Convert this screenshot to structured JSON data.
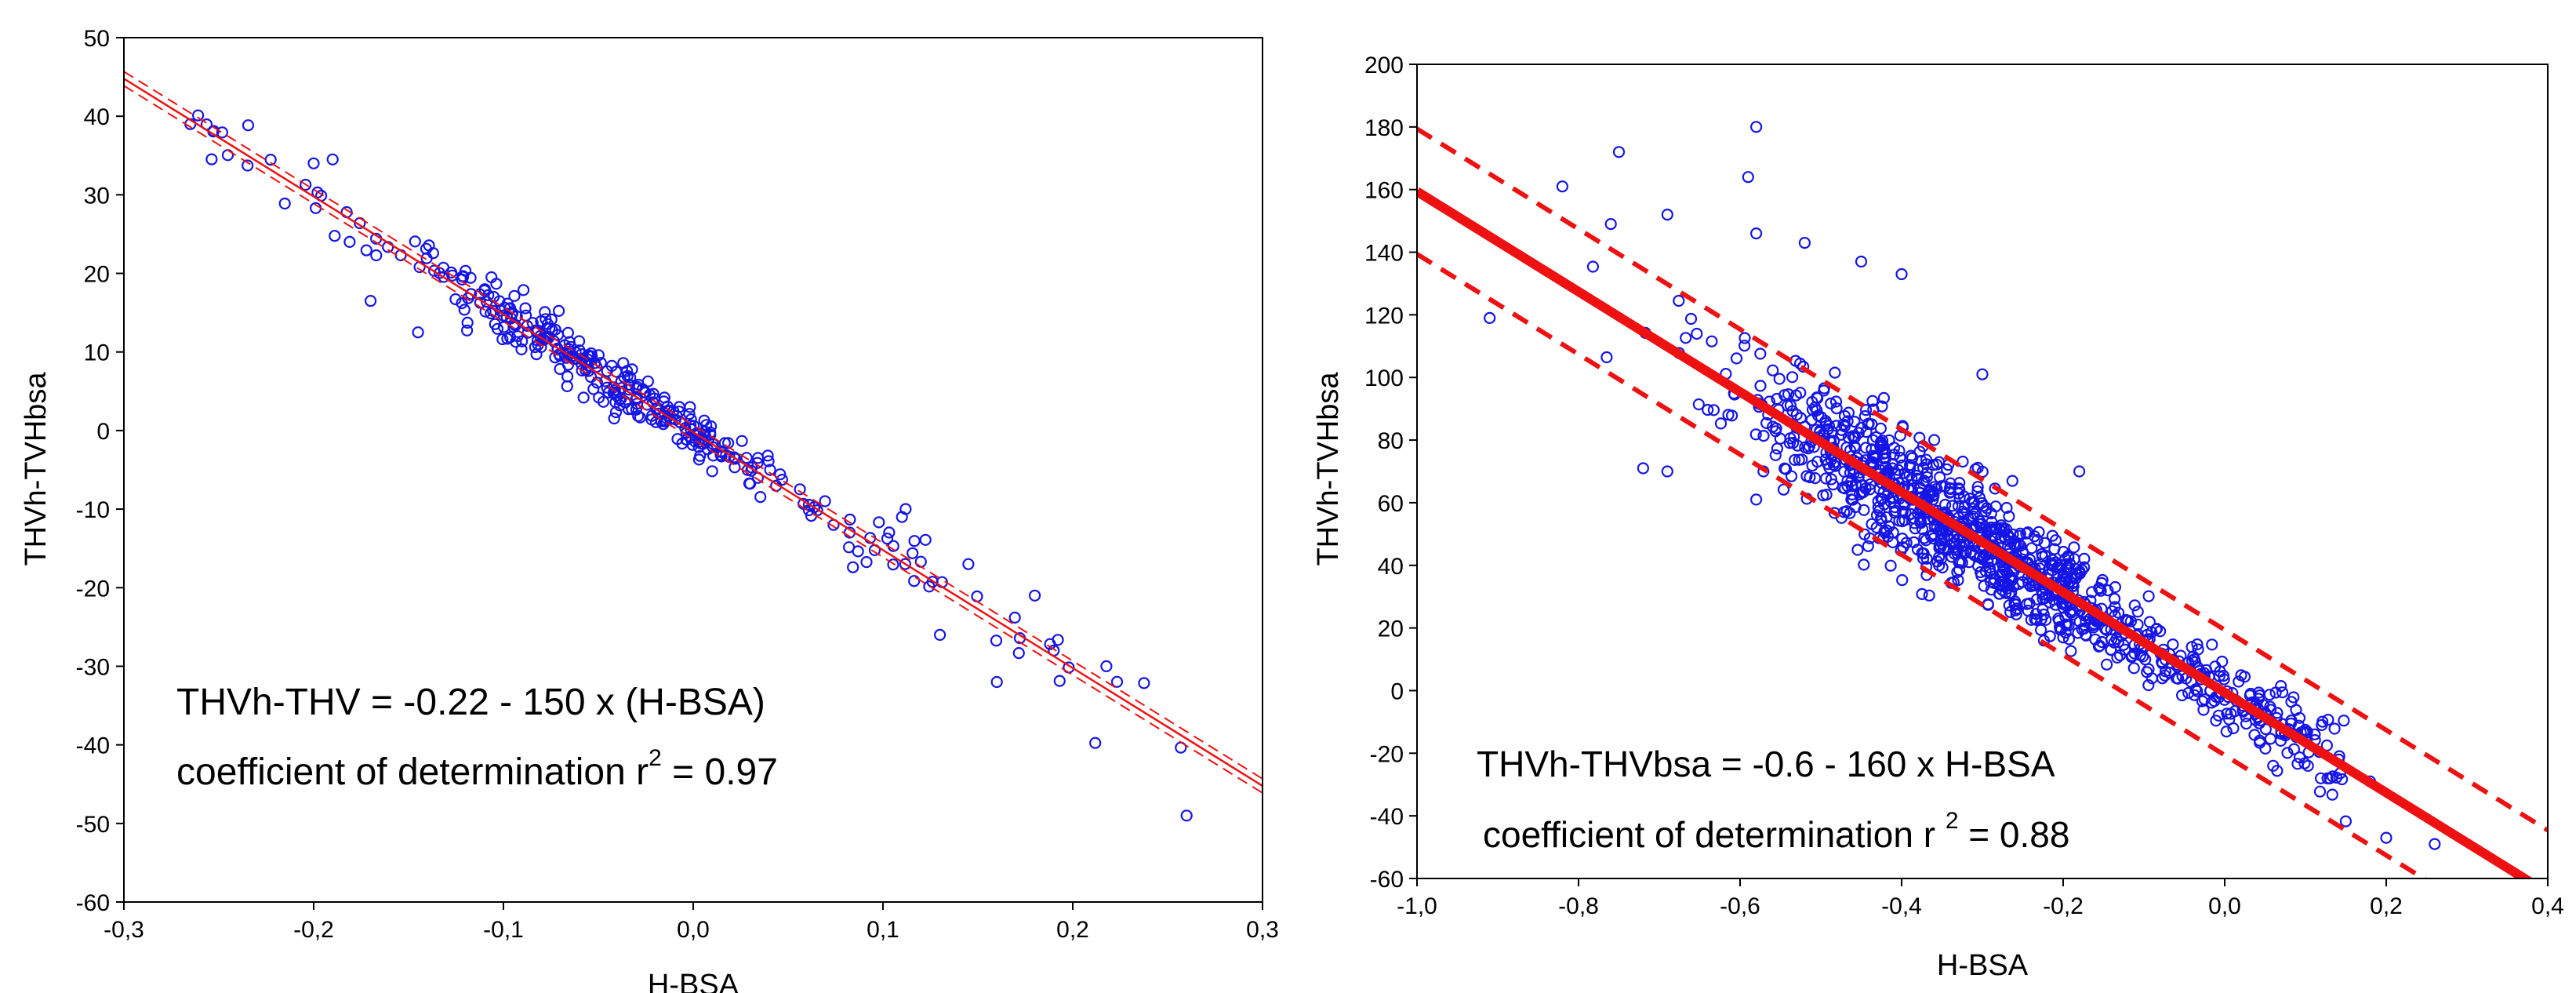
{
  "chart_data": [
    {
      "type": "scatter",
      "title": "",
      "xlabel": "H-BSA",
      "ylabel": "THVh-TVHbsa",
      "xlim": [
        -0.3,
        0.3
      ],
      "ylim": [
        -60,
        50
      ],
      "x_ticks": [
        -0.3,
        -0.2,
        -0.1,
        0.0,
        0.1,
        0.2,
        0.3
      ],
      "y_ticks": [
        -60,
        -50,
        -40,
        -30,
        -20,
        -10,
        0,
        10,
        20,
        30,
        40,
        50
      ],
      "x_tick_labels": [
        "-0,3",
        "-0,2",
        "-0,1",
        "0,0",
        "0,1",
        "0,2",
        "0,3"
      ],
      "y_tick_labels": [
        "-60",
        "-50",
        "-40",
        "-30",
        "-20",
        "-10",
        "0",
        "10",
        "20",
        "30",
        "40",
        "50"
      ],
      "grid": false,
      "regression": {
        "intercept": -0.22,
        "slope": -150,
        "band": 0.9,
        "style": "thin-solid-with-dashed-confidence"
      },
      "annotations": [
        "THVh-THV = -0.22 - 150 x (H-BSA)",
        "coefficient of determination r",
        "2",
        " = 0.97"
      ],
      "points_description_count": 360,
      "noise_sd": 1.8,
      "points_x_range": [
        -0.27,
        0.26
      ],
      "outliers": [
        {
          "x": -0.265,
          "y": 39
        },
        {
          "x": 0.26,
          "y": -49
        },
        {
          "x": 0.16,
          "y": -32
        },
        {
          "x": 0.19,
          "y": -28
        },
        {
          "x": 0.18,
          "y": -21
        },
        {
          "x": -0.145,
          "y": 12.5
        },
        {
          "x": -0.17,
          "y": 16.5
        },
        {
          "x": 0.145,
          "y": -17
        },
        {
          "x": 0.13,
          "y": -26
        },
        {
          "x": 0.11,
          "y": -11
        },
        {
          "x": -0.2,
          "y": 34
        },
        {
          "x": -0.19,
          "y": 34.5
        }
      ]
    },
    {
      "type": "scatter",
      "title": "",
      "xlabel": "H-BSA",
      "ylabel": "THVh-TVHbsa",
      "xlim": [
        -1.0,
        0.4
      ],
      "ylim": [
        -60,
        200
      ],
      "x_ticks": [
        -1.0,
        -0.8,
        -0.6,
        -0.4,
        -0.2,
        0.0,
        0.2,
        0.4
      ],
      "y_ticks": [
        -60,
        -40,
        -20,
        0,
        20,
        40,
        60,
        80,
        100,
        120,
        140,
        160,
        180,
        200
      ],
      "x_tick_labels": [
        "-1,0",
        "-0,8",
        "-0,6",
        "-0,4",
        "-0,2",
        "0,0",
        "0,2",
        "0,4"
      ],
      "y_tick_labels": [
        "-60",
        "-40",
        "-20",
        "0",
        "20",
        "40",
        "60",
        "80",
        "100",
        "120",
        "140",
        "160",
        "180",
        "200"
      ],
      "grid": false,
      "regression": {
        "intercept": -0.6,
        "slope": -160,
        "band": 20,
        "style": "thick-solid-with-dashed-prediction"
      },
      "annotations": [
        "THVh-THVbsa = -0.6 - 160 x H-BSA",
        "coefficient of determination r ",
        "2",
        " = 0.88"
      ],
      "points_description_count": 1100,
      "noise_sd": 9,
      "points_x_range": [
        -0.9,
        0.26
      ],
      "outliers": [
        {
          "x": -0.58,
          "y": 180
        },
        {
          "x": -0.75,
          "y": 172
        },
        {
          "x": -0.59,
          "y": 164
        },
        {
          "x": -0.82,
          "y": 161
        },
        {
          "x": -0.52,
          "y": 143
        },
        {
          "x": -0.58,
          "y": 146
        },
        {
          "x": -0.45,
          "y": 137
        },
        {
          "x": -0.4,
          "y": 133
        },
        {
          "x": -0.69,
          "y": 152
        },
        {
          "x": -0.76,
          "y": 149
        },
        {
          "x": -0.91,
          "y": 119
        },
        {
          "x": -0.69,
          "y": 70
        },
        {
          "x": -0.72,
          "y": 71
        },
        {
          "x": -0.58,
          "y": 61
        },
        {
          "x": -0.3,
          "y": 101
        },
        {
          "x": -0.18,
          "y": 70
        },
        {
          "x": 0.26,
          "y": -49
        },
        {
          "x": 0.2,
          "y": -47
        },
        {
          "x": 0.18,
          "y": -29
        },
        {
          "x": 0.06,
          "y": -24
        }
      ]
    }
  ]
}
